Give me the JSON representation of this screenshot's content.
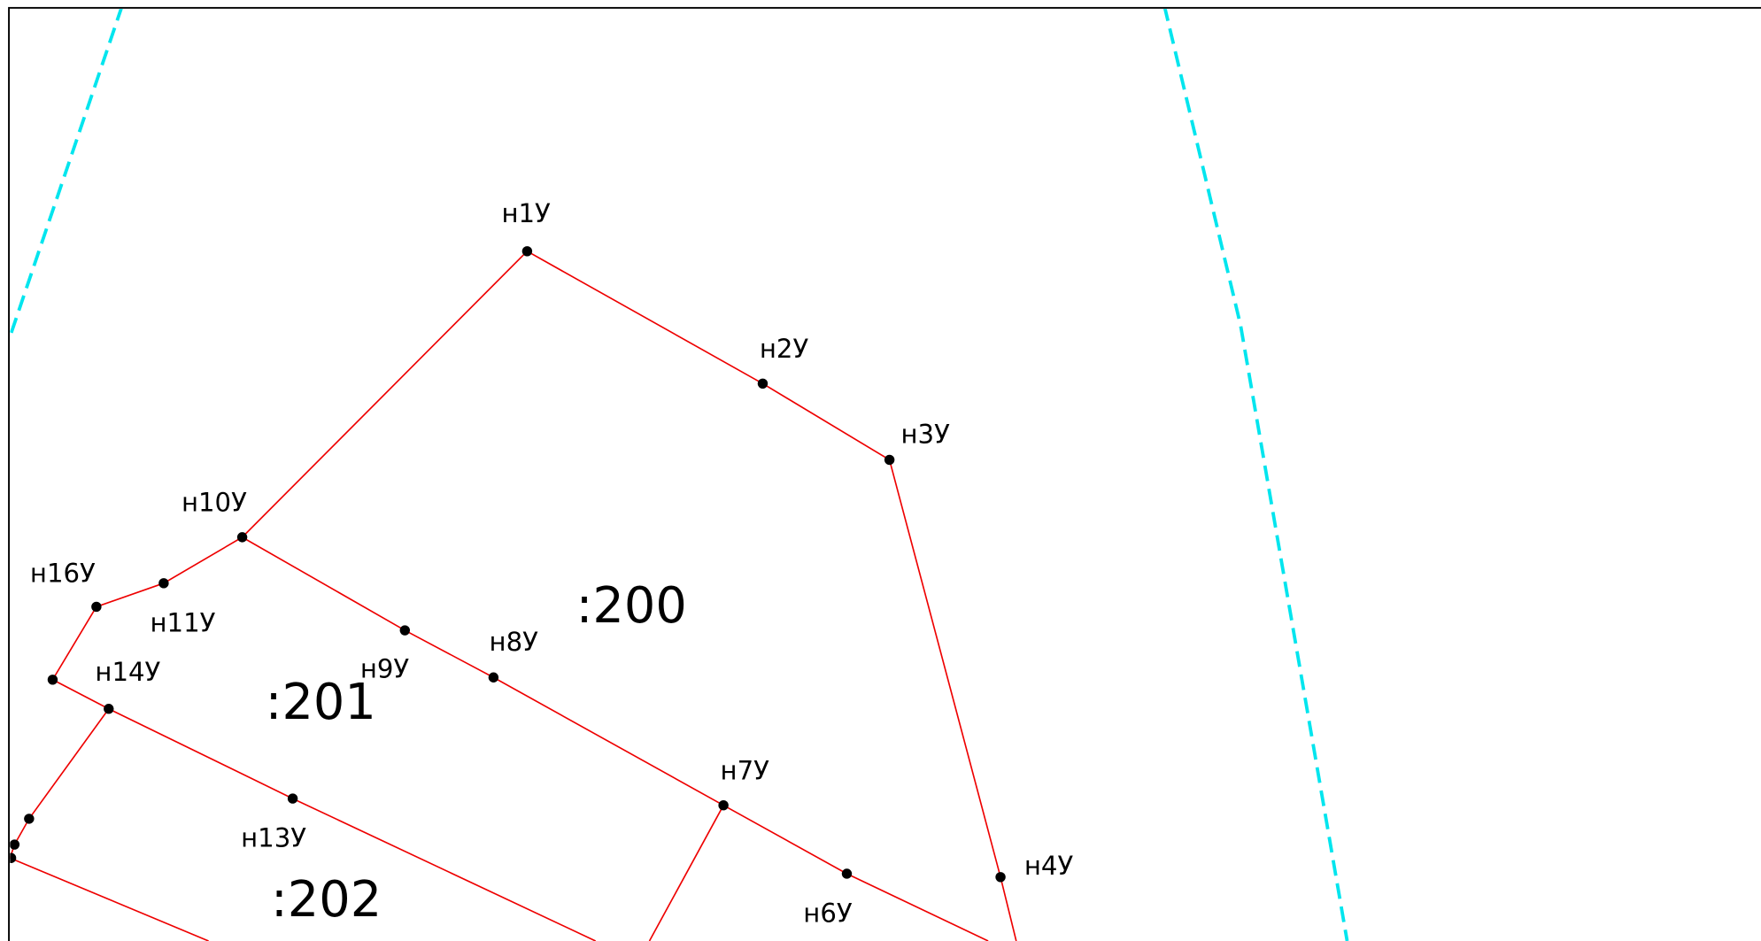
{
  "points": [
    {
      "label": "н1У"
    },
    {
      "label": "н2У"
    },
    {
      "label": "н3У"
    },
    {
      "label": "н4У"
    },
    {
      "label": "н6У"
    },
    {
      "label": "н7У"
    },
    {
      "label": "н8У"
    },
    {
      "label": "н9У"
    },
    {
      "label": "н10У"
    },
    {
      "label": "н11У"
    },
    {
      "label": "н16У"
    },
    {
      "label": "н14У"
    },
    {
      "label": "н13У"
    }
  ],
  "parcels": [
    {
      "label": ":200"
    },
    {
      "label": ":201"
    },
    {
      "label": ":202"
    }
  ]
}
